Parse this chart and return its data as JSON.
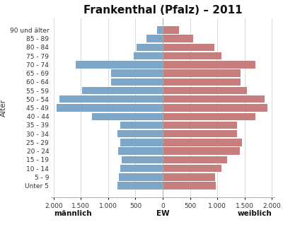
{
  "title": "Frankenthal (Pfalz) – 2011",
  "age_groups": [
    "Unter 5",
    "5 - 9",
    "10 - 14",
    "15 - 19",
    "20 - 24",
    "25 - 29",
    "30 - 34",
    "35 - 39",
    "40 - 44",
    "45 - 49",
    "50 - 54",
    "55 - 59",
    "60 - 64",
    "65 - 69",
    "70 - 74",
    "75 - 79",
    "80 - 84",
    "85 - 89",
    "90 und älter"
  ],
  "male": [
    830,
    800,
    780,
    750,
    820,
    780,
    830,
    780,
    1300,
    1950,
    1900,
    1480,
    950,
    950,
    1600,
    530,
    480,
    300,
    100
  ],
  "female": [
    970,
    960,
    1080,
    1180,
    1410,
    1450,
    1360,
    1360,
    1700,
    1920,
    1870,
    1540,
    1430,
    1430,
    1700,
    1080,
    950,
    560,
    300
  ],
  "male_color": "#7EA6C8",
  "female_color": "#C87E7E",
  "background_color": "#FFFFFF",
  "grid_color": "#CCCCCC",
  "label_männlich": "männlich",
  "label_weiblich": "weiblich",
  "xlabel": "EW",
  "ylabel_age": "Alter",
  "xlim": 2050,
  "xtick_vals": [
    -2000,
    -1500,
    -1000,
    -500,
    0,
    500,
    1000,
    1500,
    2000
  ],
  "xtick_labels": [
    "2.000",
    "1.500",
    "1.000",
    "500",
    "0",
    "500",
    "1.000",
    "1.500",
    "2.000"
  ],
  "title_fontsize": 11,
  "axis_label_fontsize": 7.5,
  "tick_fontsize": 6.5,
  "bold_labels": [
    "männlich",
    "weiblich",
    "EW"
  ]
}
